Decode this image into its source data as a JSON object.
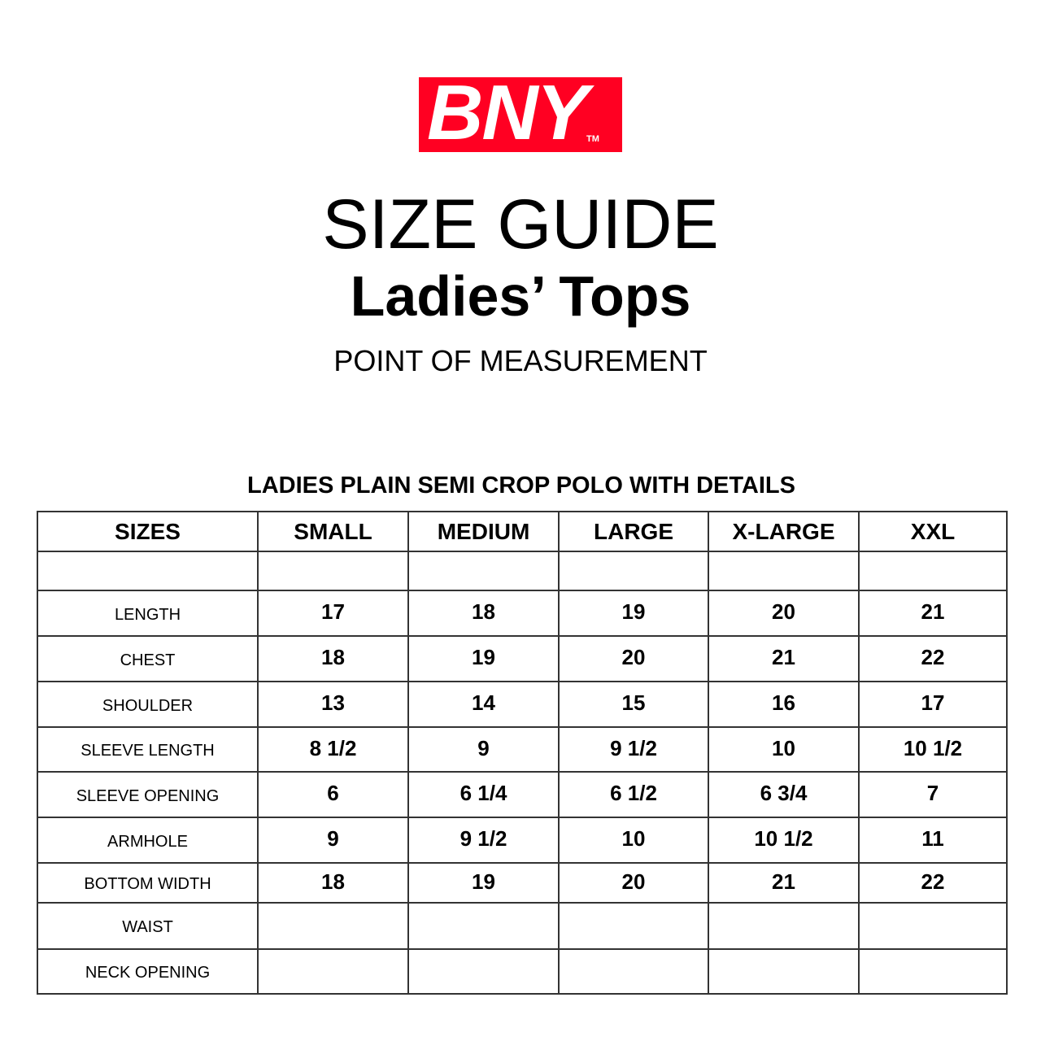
{
  "logo": {
    "text": "BNY",
    "tm": "TM",
    "color": "#ff0022"
  },
  "title": "SIZE GUIDE",
  "subtitle": "Ladies’ Tops",
  "point_of_measurement": "POINT OF MEASUREMENT",
  "table": {
    "title": "LADIES PLAIN SEMI CROP POLO WITH DETAILS",
    "headers": [
      "SIZES",
      "SMALL",
      "MEDIUM",
      "LARGE",
      "X-LARGE",
      "XXL"
    ],
    "rows": [
      {
        "label": "",
        "values": [
          "",
          "",
          "",
          "",
          ""
        ]
      },
      {
        "label": "LENGTH",
        "values": [
          "17",
          "18",
          "19",
          "20",
          "21"
        ]
      },
      {
        "label": "CHEST",
        "values": [
          "18",
          "19",
          "20",
          "21",
          "22"
        ]
      },
      {
        "label": "SHOULDER",
        "values": [
          "13",
          "14",
          "15",
          "16",
          "17"
        ]
      },
      {
        "label": "SLEEVE LENGTH",
        "values": [
          "8 1/2",
          "9",
          "9 1/2",
          "10",
          "10 1/2"
        ]
      },
      {
        "label": "SLEEVE OPENING",
        "values": [
          "6",
          "6 1/4",
          "6 1/2",
          "6 3/4",
          "7"
        ]
      },
      {
        "label": "ARMHOLE",
        "values": [
          "9",
          "9 1/2",
          "10",
          "10 1/2",
          "11"
        ]
      },
      {
        "label": "BOTTOM WIDTH",
        "values": [
          "18",
          "19",
          "20",
          "21",
          "22"
        ]
      },
      {
        "label": "WAIST",
        "values": [
          "",
          "",
          "",
          "",
          ""
        ]
      },
      {
        "label": "NECK OPENING",
        "values": [
          "",
          "",
          "",
          "",
          ""
        ]
      }
    ]
  }
}
